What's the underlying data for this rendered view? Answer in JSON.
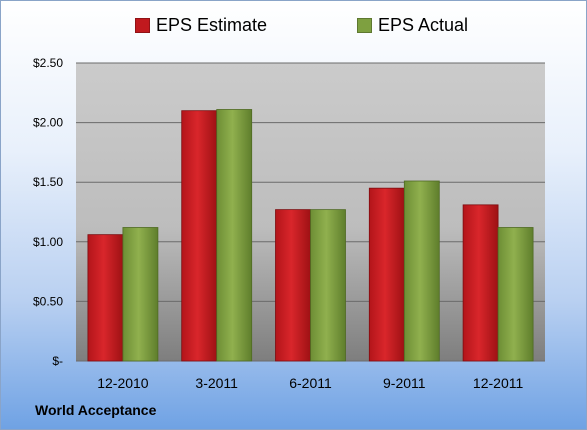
{
  "chart_data": {
    "type": "bar",
    "title": "",
    "xlabel": "",
    "ylabel": "",
    "categories": [
      "12-2010",
      "3-2011",
      "6-2011",
      "9-2011",
      "12-2011"
    ],
    "series": [
      {
        "name": "EPS Estimate",
        "values": [
          1.06,
          2.1,
          1.27,
          1.45,
          1.31
        ],
        "color": "#c0191e"
      },
      {
        "name": "EPS Actual",
        "values": [
          1.12,
          2.11,
          1.27,
          1.51,
          1.12
        ],
        "color": "#7ea040"
      }
    ],
    "ylim": [
      0,
      2.5
    ],
    "yticks": [
      0,
      0.5,
      1.0,
      1.5,
      2.0,
      2.5
    ],
    "ytick_labels": [
      "$-",
      "$0.50",
      "$1.00",
      "$1.50",
      "$2.00",
      "$2.50"
    ],
    "grid": true,
    "legend_position": "top"
  },
  "footer": {
    "company": "World Acceptance"
  }
}
